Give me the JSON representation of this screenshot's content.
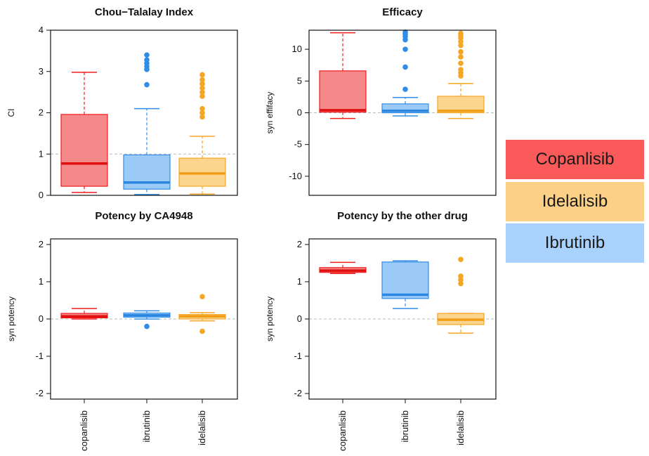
{
  "chart_data": [
    {
      "type": "box",
      "title": "Chou−Talalay Index",
      "ylabel": "CI",
      "ylim": [
        0,
        4
      ],
      "yticks": [
        0,
        1,
        2,
        3,
        4
      ],
      "reference_line": 1,
      "categories": [
        "copanlisib",
        "ibrutinib",
        "idelalisib"
      ],
      "boxes": [
        {
          "min": 0.07,
          "q1": 0.22,
          "median": 0.77,
          "q3": 1.96,
          "max": 2.98,
          "outliers": []
        },
        {
          "min": 0.02,
          "q1": 0.15,
          "median": 0.31,
          "q3": 0.98,
          "max": 2.1,
          "outliers": [
            2.68,
            3.05,
            3.12,
            3.2,
            3.28,
            3.4
          ]
        },
        {
          "min": 0.03,
          "q1": 0.22,
          "median": 0.53,
          "q3": 0.9,
          "max": 1.43,
          "outliers": [
            1.9,
            2.0,
            2.1,
            2.4,
            2.5,
            2.6,
            2.7,
            2.8,
            2.92
          ]
        }
      ]
    },
    {
      "type": "box",
      "title": "Efficacy",
      "ylabel": "syn effifacy",
      "ylim": [
        -13,
        13
      ],
      "yticks": [
        -10,
        -5,
        0,
        5,
        10
      ],
      "reference_line": 0,
      "categories": [
        "copanlisib",
        "ibrutinib",
        "idelalisib"
      ],
      "boxes": [
        {
          "min": -0.9,
          "q1": 0.1,
          "median": 0.4,
          "q3": 6.6,
          "max": 12.6,
          "outliers": []
        },
        {
          "min": -0.5,
          "q1": 0.0,
          "median": 0.3,
          "q3": 1.4,
          "max": 2.4,
          "outliers": [
            3.7,
            7.2,
            10.0,
            11.5,
            12.0,
            12.4,
            12.7
          ]
        },
        {
          "min": -0.9,
          "q1": 0.0,
          "median": 0.3,
          "q3": 2.6,
          "max": 4.6,
          "outliers": [
            5.8,
            6.3,
            6.8,
            7.8,
            8.8,
            9.6,
            10.6,
            11.2,
            11.8,
            12.2,
            12.5
          ]
        }
      ]
    },
    {
      "type": "box",
      "title": "Potency by CA4948",
      "ylabel": "syn potency",
      "ylim": [
        -2.15,
        2.15
      ],
      "yticks": [
        -2,
        -1,
        0,
        1,
        2
      ],
      "reference_line": 0,
      "categories": [
        "copanlisib",
        "ibrutinib",
        "idelalisib"
      ],
      "boxes": [
        {
          "min": 0.0,
          "q1": 0.03,
          "median": 0.07,
          "q3": 0.15,
          "max": 0.28,
          "outliers": []
        },
        {
          "min": 0.0,
          "q1": 0.05,
          "median": 0.1,
          "q3": 0.16,
          "max": 0.22,
          "outliers": [
            -0.2
          ]
        },
        {
          "min": -0.05,
          "q1": 0.0,
          "median": 0.07,
          "q3": 0.12,
          "max": 0.17,
          "outliers": [
            -0.33,
            0.6
          ]
        }
      ]
    },
    {
      "type": "box",
      "title": "Potency by the other drug",
      "ylabel": "syn potency",
      "ylim": [
        -2.15,
        2.15
      ],
      "yticks": [
        -2,
        -1,
        0,
        1,
        2
      ],
      "reference_line": 0,
      "categories": [
        "copanlisib",
        "ibrutinib",
        "idelalisib"
      ],
      "boxes": [
        {
          "min": 1.22,
          "q1": 1.25,
          "median": 1.3,
          "q3": 1.38,
          "max": 1.52,
          "outliers": []
        },
        {
          "min": 0.28,
          "q1": 0.55,
          "median": 0.65,
          "q3": 1.53,
          "max": 1.56,
          "outliers": []
        },
        {
          "min": -0.38,
          "q1": -0.15,
          "median": -0.02,
          "q3": 0.15,
          "max": 0.15,
          "outliers": [
            0.95,
            1.05,
            1.15,
            1.6
          ]
        }
      ]
    }
  ],
  "series_colors": {
    "copanlisib": {
      "stroke": "#f01d1d",
      "fill": "#f58888",
      "median": "#e01010"
    },
    "ibrutinib": {
      "stroke": "#2f8de8",
      "fill": "#9ccaf6",
      "median": "#2a86e2"
    },
    "idelalisib": {
      "stroke": "#f5a623",
      "fill": "#fbd58d",
      "median": "#f09e18"
    }
  },
  "legend": [
    {
      "label": "Copanlisib",
      "color": "#fa5a5a"
    },
    {
      "label": "Idelalisib",
      "color": "#fcd087"
    },
    {
      "label": "Ibrutinib",
      "color": "#a8d2fb"
    }
  ]
}
